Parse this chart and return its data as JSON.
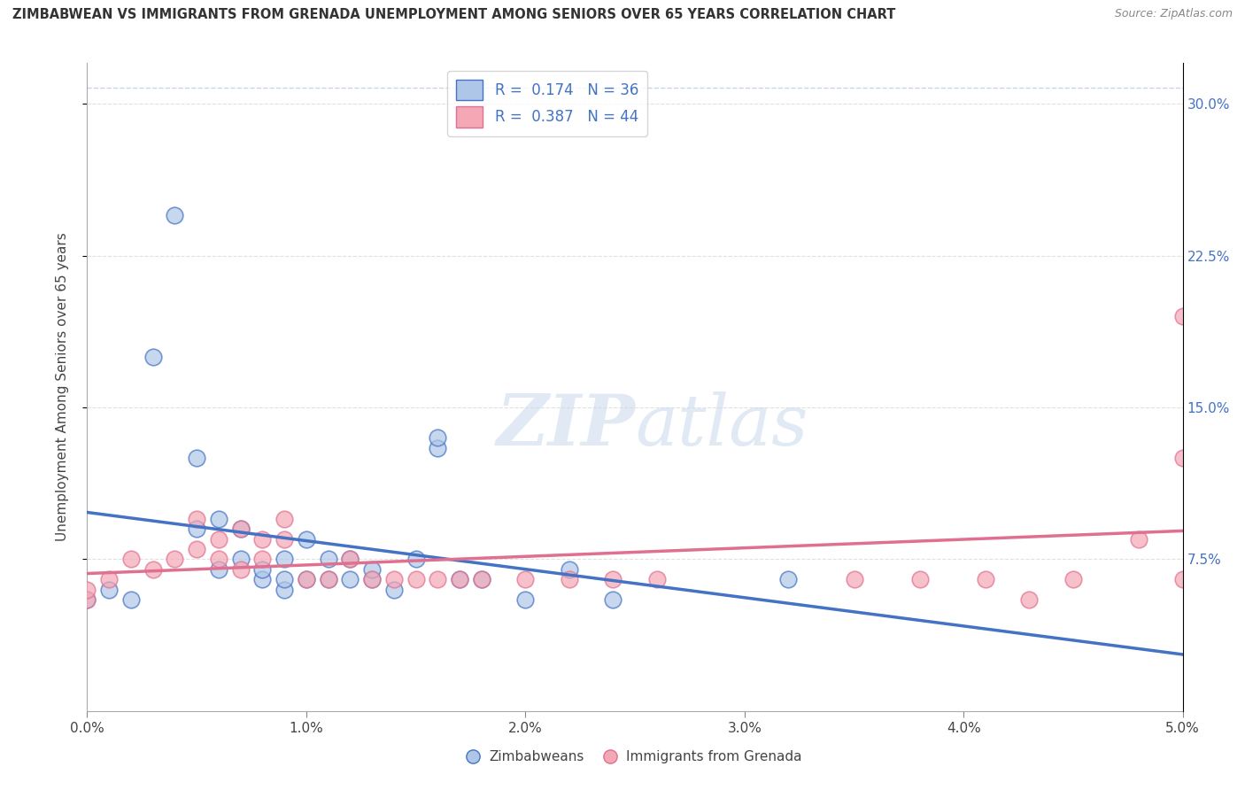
{
  "title": "ZIMBABWEAN VS IMMIGRANTS FROM GRENADA UNEMPLOYMENT AMONG SENIORS OVER 65 YEARS CORRELATION CHART",
  "source": "Source: ZipAtlas.com",
  "ylabel": "Unemployment Among Seniors over 65 years",
  "y_ticks": [
    "7.5%",
    "15.0%",
    "22.5%",
    "30.0%"
  ],
  "y_tick_vals": [
    0.075,
    0.15,
    0.225,
    0.3
  ],
  "x_range": [
    0.0,
    0.05
  ],
  "y_range": [
    0.0,
    0.32
  ],
  "color_blue": "#AEC6E8",
  "color_pink": "#F4A7B5",
  "line_blue": "#4472C4",
  "line_pink": "#E07090",
  "zimbabwean_x": [
    0.0,
    0.001,
    0.002,
    0.003,
    0.004,
    0.005,
    0.005,
    0.006,
    0.006,
    0.007,
    0.007,
    0.008,
    0.008,
    0.009,
    0.009,
    0.009,
    0.01,
    0.01,
    0.011,
    0.011,
    0.012,
    0.012,
    0.013,
    0.013,
    0.014,
    0.015,
    0.016,
    0.016,
    0.017,
    0.018,
    0.02,
    0.022,
    0.024,
    0.032
  ],
  "zimbabwean_y": [
    0.055,
    0.06,
    0.055,
    0.175,
    0.245,
    0.09,
    0.125,
    0.095,
    0.07,
    0.09,
    0.075,
    0.065,
    0.07,
    0.06,
    0.075,
    0.065,
    0.065,
    0.085,
    0.065,
    0.075,
    0.065,
    0.075,
    0.065,
    0.07,
    0.06,
    0.075,
    0.13,
    0.135,
    0.065,
    0.065,
    0.055,
    0.07,
    0.055,
    0.065
  ],
  "grenada_x": [
    0.0,
    0.0,
    0.001,
    0.002,
    0.003,
    0.004,
    0.005,
    0.005,
    0.006,
    0.006,
    0.007,
    0.007,
    0.008,
    0.008,
    0.009,
    0.009,
    0.01,
    0.011,
    0.012,
    0.013,
    0.014,
    0.015,
    0.016,
    0.017,
    0.018,
    0.02,
    0.022,
    0.024,
    0.026,
    0.035,
    0.038,
    0.041,
    0.043,
    0.045,
    0.048,
    0.05,
    0.05,
    0.05
  ],
  "grenada_y": [
    0.055,
    0.06,
    0.065,
    0.075,
    0.07,
    0.075,
    0.08,
    0.095,
    0.075,
    0.085,
    0.07,
    0.09,
    0.075,
    0.085,
    0.085,
    0.095,
    0.065,
    0.065,
    0.075,
    0.065,
    0.065,
    0.065,
    0.065,
    0.065,
    0.065,
    0.065,
    0.065,
    0.065,
    0.065,
    0.065,
    0.065,
    0.065,
    0.055,
    0.065,
    0.085,
    0.065,
    0.195,
    0.125
  ]
}
